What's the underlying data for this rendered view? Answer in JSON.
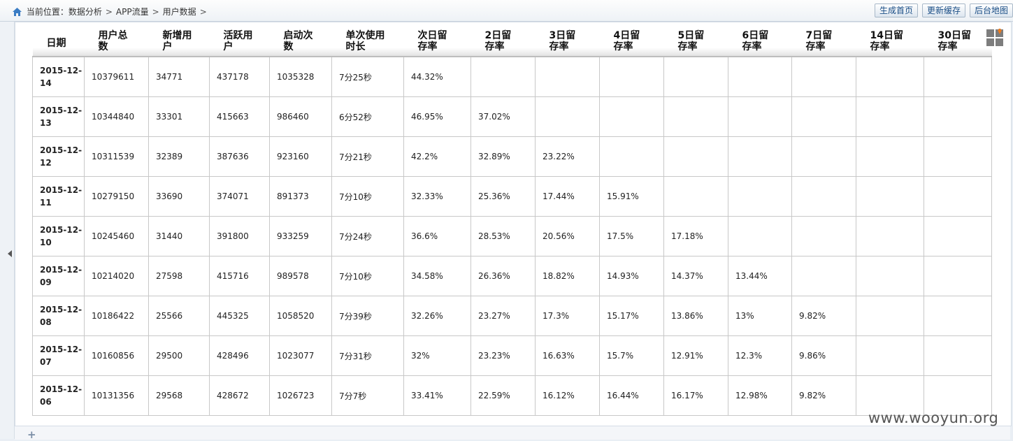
{
  "breadcrumb": {
    "prefix": "当前位置：",
    "items": [
      "数据分析",
      "APP流量",
      "用户数据"
    ],
    "separator": ">"
  },
  "toolbar": {
    "buttons": [
      "生成首页",
      "更新缓存",
      "后台地图"
    ]
  },
  "table": {
    "headers": [
      [
        "日期",
        ""
      ],
      [
        "用户总",
        "数"
      ],
      [
        "新增用",
        "户"
      ],
      [
        "活跃用",
        "户"
      ],
      [
        "启动次",
        "数"
      ],
      [
        "单次使用",
        "时长"
      ],
      [
        "次日留",
        "存率"
      ],
      [
        "2日留",
        "存率"
      ],
      [
        "3日留",
        "存率"
      ],
      [
        "4日留",
        "存率"
      ],
      [
        "5日留",
        "存率"
      ],
      [
        "6日留",
        "存率"
      ],
      [
        "7日留",
        "存率"
      ],
      [
        "14日留",
        "存率"
      ],
      [
        "30日留",
        "存率"
      ]
    ],
    "rows": [
      {
        "date": [
          "2015-12-",
          "14"
        ],
        "cells": [
          "10379611",
          "34771",
          "437178",
          "1035328",
          "7分25秒",
          "44.32%",
          "",
          "",
          "",
          "",
          "",
          "",
          "",
          ""
        ]
      },
      {
        "date": [
          "2015-12-",
          "13"
        ],
        "cells": [
          "10344840",
          "33301",
          "415663",
          "986460",
          "6分52秒",
          "46.95%",
          "37.02%",
          "",
          "",
          "",
          "",
          "",
          "",
          ""
        ]
      },
      {
        "date": [
          "2015-12-",
          "12"
        ],
        "cells": [
          "10311539",
          "32389",
          "387636",
          "923160",
          "7分21秒",
          "42.2%",
          "32.89%",
          "23.22%",
          "",
          "",
          "",
          "",
          "",
          ""
        ]
      },
      {
        "date": [
          "2015-12-",
          "11"
        ],
        "cells": [
          "10279150",
          "33690",
          "374071",
          "891373",
          "7分10秒",
          "32.33%",
          "25.36%",
          "17.44%",
          "15.91%",
          "",
          "",
          "",
          "",
          ""
        ]
      },
      {
        "date": [
          "2015-12-",
          "10"
        ],
        "cells": [
          "10245460",
          "31440",
          "391800",
          "933259",
          "7分24秒",
          "36.6%",
          "28.53%",
          "20.56%",
          "17.5%",
          "17.18%",
          "",
          "",
          "",
          ""
        ]
      },
      {
        "date": [
          "2015-12-",
          "09"
        ],
        "cells": [
          "10214020",
          "27598",
          "415716",
          "989578",
          "7分10秒",
          "34.58%",
          "26.36%",
          "18.82%",
          "14.93%",
          "14.37%",
          "13.44%",
          "",
          "",
          ""
        ]
      },
      {
        "date": [
          "2015-12-",
          "08"
        ],
        "cells": [
          "10186422",
          "25566",
          "445325",
          "1058520",
          "7分39秒",
          "32.26%",
          "23.27%",
          "17.3%",
          "15.17%",
          "13.86%",
          "13%",
          "9.82%",
          "",
          ""
        ]
      },
      {
        "date": [
          "2015-12-",
          "07"
        ],
        "cells": [
          "10160856",
          "29500",
          "428496",
          "1023077",
          "7分31秒",
          "32%",
          "23.23%",
          "16.63%",
          "15.7%",
          "12.91%",
          "12.3%",
          "9.86%",
          "",
          ""
        ]
      },
      {
        "date": [
          "2015-12-",
          "06"
        ],
        "cells": [
          "10131356",
          "29568",
          "428672",
          "1026723",
          "7分7秒",
          "33.41%",
          "22.59%",
          "16.12%",
          "16.44%",
          "16.17%",
          "12.98%",
          "9.82%",
          "",
          ""
        ]
      }
    ]
  },
  "watermark": "www.wooyun.org",
  "icons": {
    "home": "home-icon",
    "corner": "grid-dropdown-icon",
    "collapse": "collapse-left-arrow-icon",
    "add": "plus-icon"
  },
  "colors": {
    "button_text": "#1a4e86",
    "corner_arrow": "#f07b1c"
  }
}
